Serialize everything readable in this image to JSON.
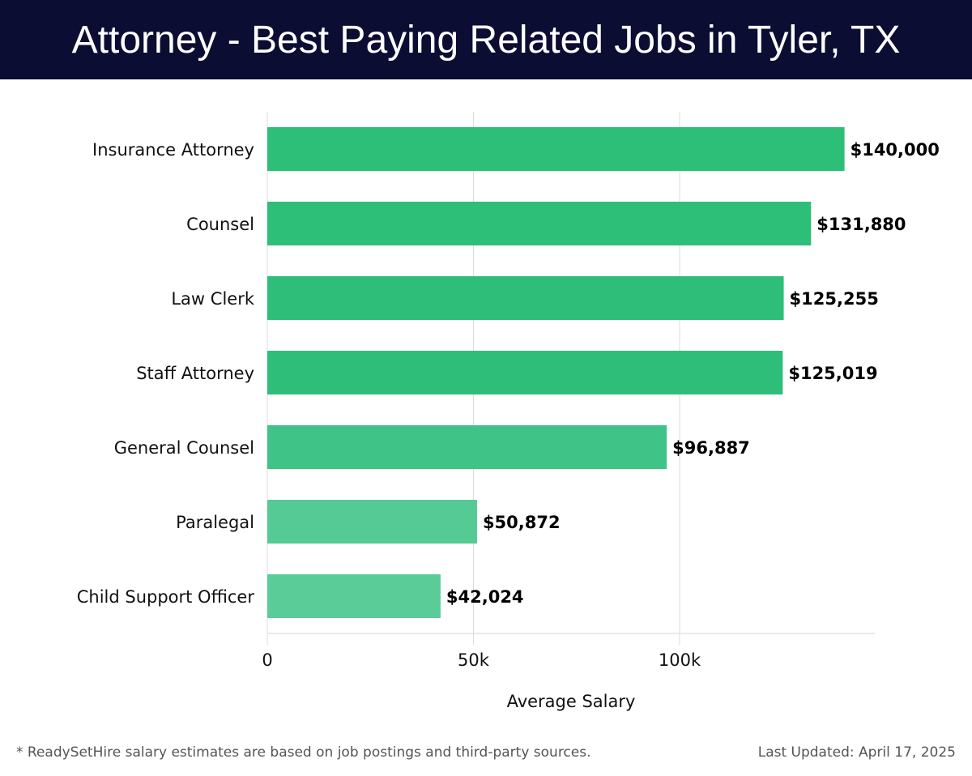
{
  "chart_data": {
    "type": "bar",
    "orientation": "horizontal",
    "title": "Attorney - Best Paying Related Jobs in Tyler, TX",
    "categories": [
      "Insurance Attorney",
      "Counsel",
      "Law Clerk",
      "Staff Attorney",
      "General Counsel",
      "Paralegal",
      "Child Support Officer"
    ],
    "values": [
      140000,
      131880,
      125255,
      125019,
      96887,
      50872,
      42024
    ],
    "value_labels": [
      "$140,000",
      "$131,880",
      "$125,255",
      "$125,019",
      "$96,887",
      "$50,872",
      "$42,024"
    ],
    "bar_colors": [
      "#2dbe78",
      "#2dbe78",
      "#2ebe79",
      "#2ebe79",
      "#40c386",
      "#55ca94",
      "#5acc98"
    ],
    "xlabel": "Average Salary",
    "ylabel": "",
    "xlim": [
      0,
      147500
    ],
    "xticks": [
      0,
      50000,
      100000
    ],
    "xtick_labels": [
      "0",
      "50k",
      "100k"
    ],
    "grid": true
  },
  "footer": {
    "note": "* ReadySetHire salary estimates are based on job postings and third-party sources.",
    "updated": "Last Updated: April 17, 2025"
  }
}
